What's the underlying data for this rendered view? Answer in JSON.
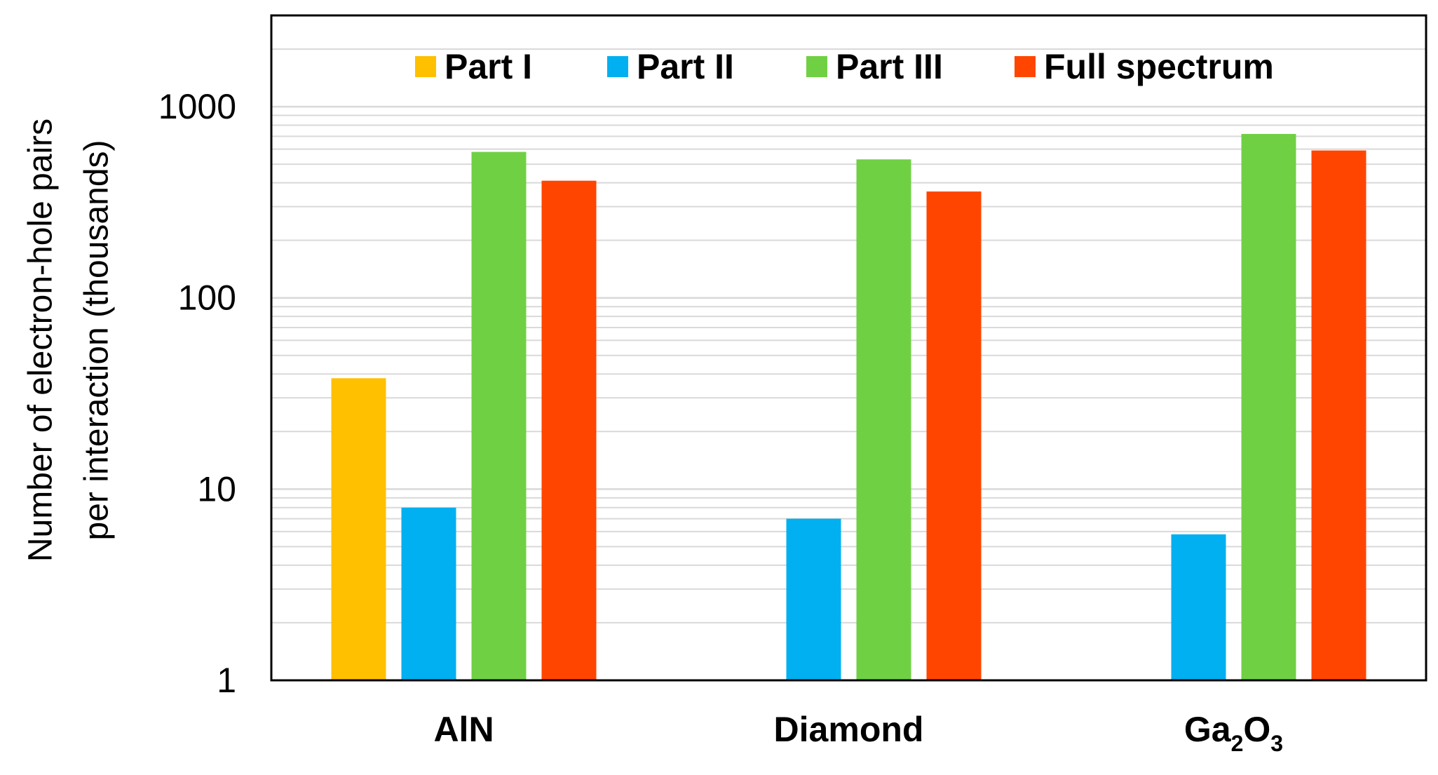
{
  "chart_data": {
    "type": "bar",
    "yscale": "log",
    "ylim": [
      1,
      3000
    ],
    "yticks": [
      1,
      10,
      100,
      1000
    ],
    "ytick_labels": [
      "1",
      "10",
      "100",
      "1000"
    ],
    "grid": "horizontal minor and major",
    "legend_position": "top",
    "ylabel_lines": [
      "Number of electron-hole pairs",
      "per interaction (thousands)"
    ],
    "categories": [
      {
        "base": "AlN",
        "sub1": "",
        "mid": "",
        "sub2": ""
      },
      {
        "base": "Diamond",
        "sub1": "",
        "mid": "",
        "sub2": ""
      },
      {
        "base": "Ga",
        "sub1": "2",
        "mid": "O",
        "sub2": "3"
      }
    ],
    "series": [
      {
        "name": "Part I",
        "color": "#FFC000",
        "values": [
          38,
          null,
          null
        ]
      },
      {
        "name": "Part II",
        "color": "#00B0F0",
        "values": [
          8,
          7,
          5.8
        ]
      },
      {
        "name": "Part III",
        "color": "#70D044",
        "values": [
          580,
          530,
          720
        ]
      },
      {
        "name": "Full spectrum",
        "color": "#FF4500",
        "values": [
          410,
          360,
          590
        ]
      }
    ]
  }
}
